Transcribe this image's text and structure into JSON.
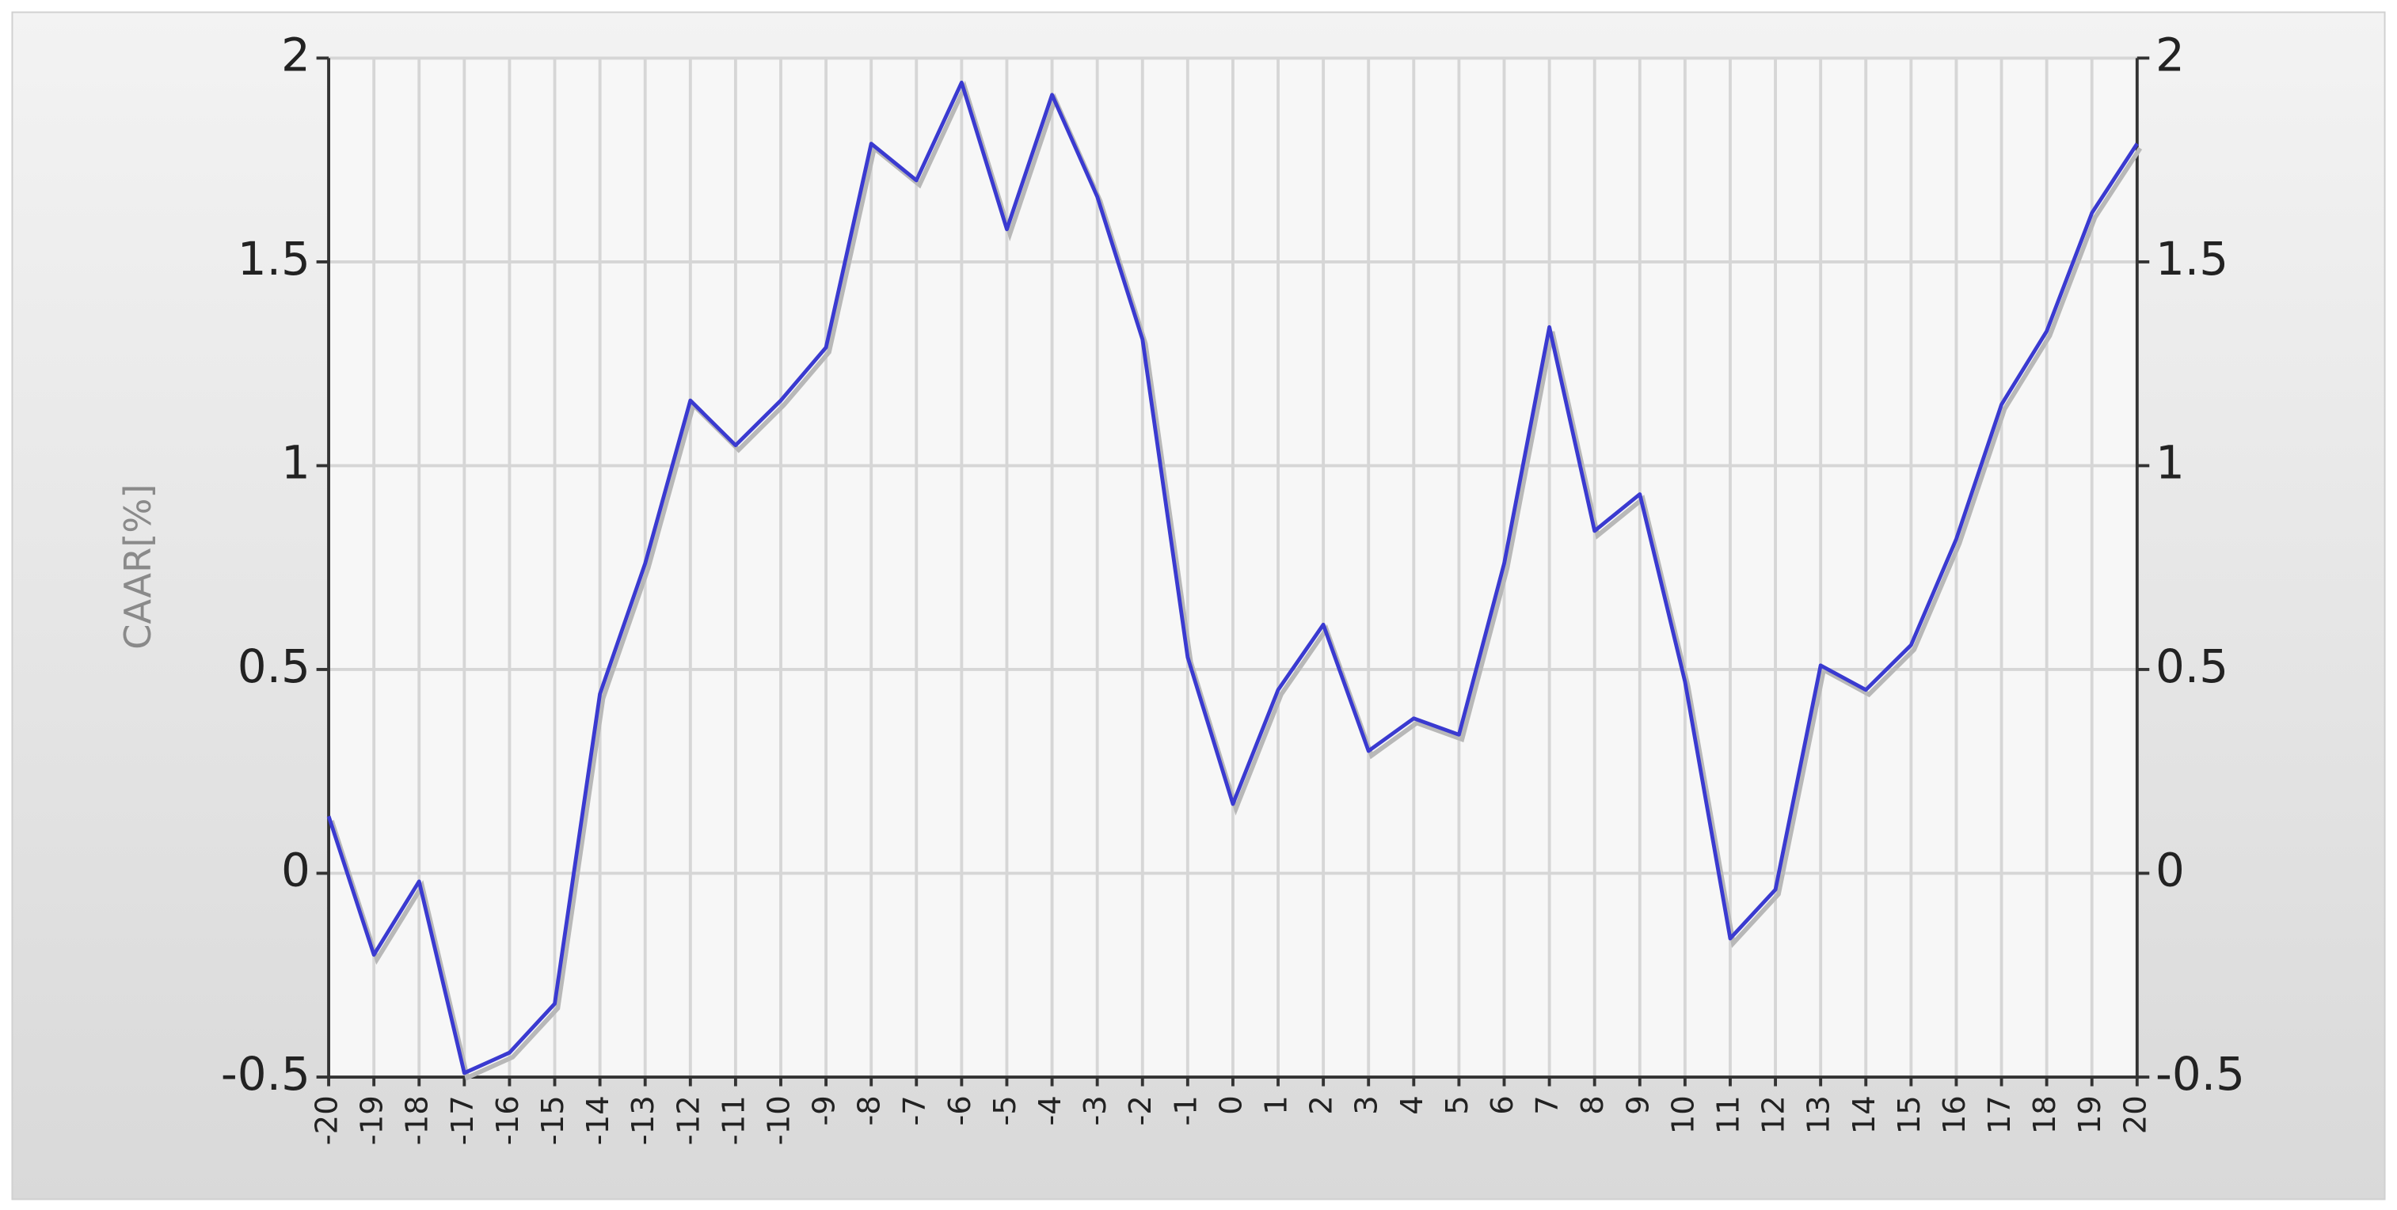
{
  "chart_data": {
    "type": "line",
    "y_label": "CAAR[%]",
    "x": [
      -20,
      -19,
      -18,
      -17,
      -16,
      -15,
      -14,
      -13,
      -12,
      -11,
      -10,
      -9,
      -8,
      -7,
      -6,
      -5,
      -4,
      -3,
      -2,
      -1,
      0,
      1,
      2,
      3,
      4,
      5,
      6,
      7,
      8,
      9,
      10,
      11,
      12,
      13,
      14,
      15,
      16,
      17,
      18,
      19,
      20
    ],
    "xlim": [
      -20,
      20
    ],
    "series": [
      {
        "color": "#3a3ad0",
        "values": [
          0.14,
          -0.2,
          -0.02,
          -0.49,
          -0.44,
          -0.32,
          0.44,
          0.76,
          1.16,
          1.05,
          1.16,
          1.29,
          1.79,
          1.7,
          1.94,
          1.58,
          1.91,
          1.66,
          1.31,
          0.53,
          0.17,
          0.45,
          0.61,
          0.3,
          0.38,
          0.34,
          0.76,
          1.34,
          0.84,
          0.93,
          0.47,
          -0.16,
          -0.04,
          0.51,
          0.45,
          0.56,
          0.82,
          1.15,
          1.33,
          1.62,
          1.79
        ]
      }
    ],
    "ylim": [
      -0.5,
      2
    ],
    "yticks": [
      -0.5,
      0,
      0.5,
      1,
      1.5,
      2
    ],
    "y2lim": [
      -0.5,
      2
    ],
    "y2ticks": [
      -0.5,
      0,
      0.5,
      1,
      1.5,
      2
    ],
    "grid": true
  }
}
